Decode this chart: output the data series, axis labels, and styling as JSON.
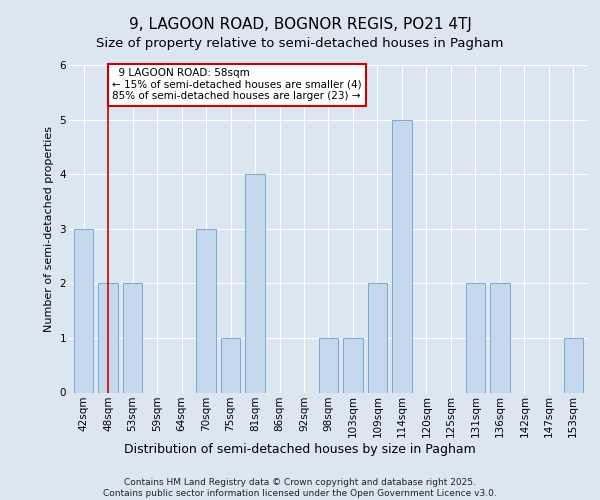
{
  "title": "9, LAGOON ROAD, BOGNOR REGIS, PO21 4TJ",
  "subtitle": "Size of property relative to semi-detached houses in Pagham",
  "xlabel": "Distribution of semi-detached houses by size in Pagham",
  "ylabel": "Number of semi-detached properties",
  "categories": [
    "42sqm",
    "48sqm",
    "53sqm",
    "59sqm",
    "64sqm",
    "70sqm",
    "75sqm",
    "81sqm",
    "86sqm",
    "92sqm",
    "98sqm",
    "103sqm",
    "109sqm",
    "114sqm",
    "120sqm",
    "125sqm",
    "131sqm",
    "136sqm",
    "142sqm",
    "147sqm",
    "153sqm"
  ],
  "values": [
    3,
    2,
    2,
    0,
    0,
    3,
    1,
    4,
    0,
    0,
    1,
    1,
    2,
    5,
    0,
    0,
    2,
    2,
    0,
    0,
    1
  ],
  "highlight_index": 1,
  "highlight_label": "9 LAGOON ROAD: 58sqm",
  "smaller_pct": 15,
  "smaller_count": 4,
  "larger_pct": 85,
  "larger_count": 23,
  "bar_color": "#c5d8ee",
  "bar_edge_color": "#7aaad0",
  "highlight_line_color": "#cc0000",
  "annotation_box_edge": "#cc0000",
  "background_color": "#dce6f0",
  "plot_bg_color": "#dce6f0",
  "ylim": [
    0,
    6
  ],
  "yticks": [
    0,
    1,
    2,
    3,
    4,
    5,
    6
  ],
  "footer": "Contains HM Land Registry data © Crown copyright and database right 2025.\nContains public sector information licensed under the Open Government Licence v3.0.",
  "title_fontsize": 11,
  "subtitle_fontsize": 9.5,
  "xlabel_fontsize": 9,
  "ylabel_fontsize": 8,
  "tick_fontsize": 7.5,
  "annotation_fontsize": 7.5,
  "footer_fontsize": 6.5
}
